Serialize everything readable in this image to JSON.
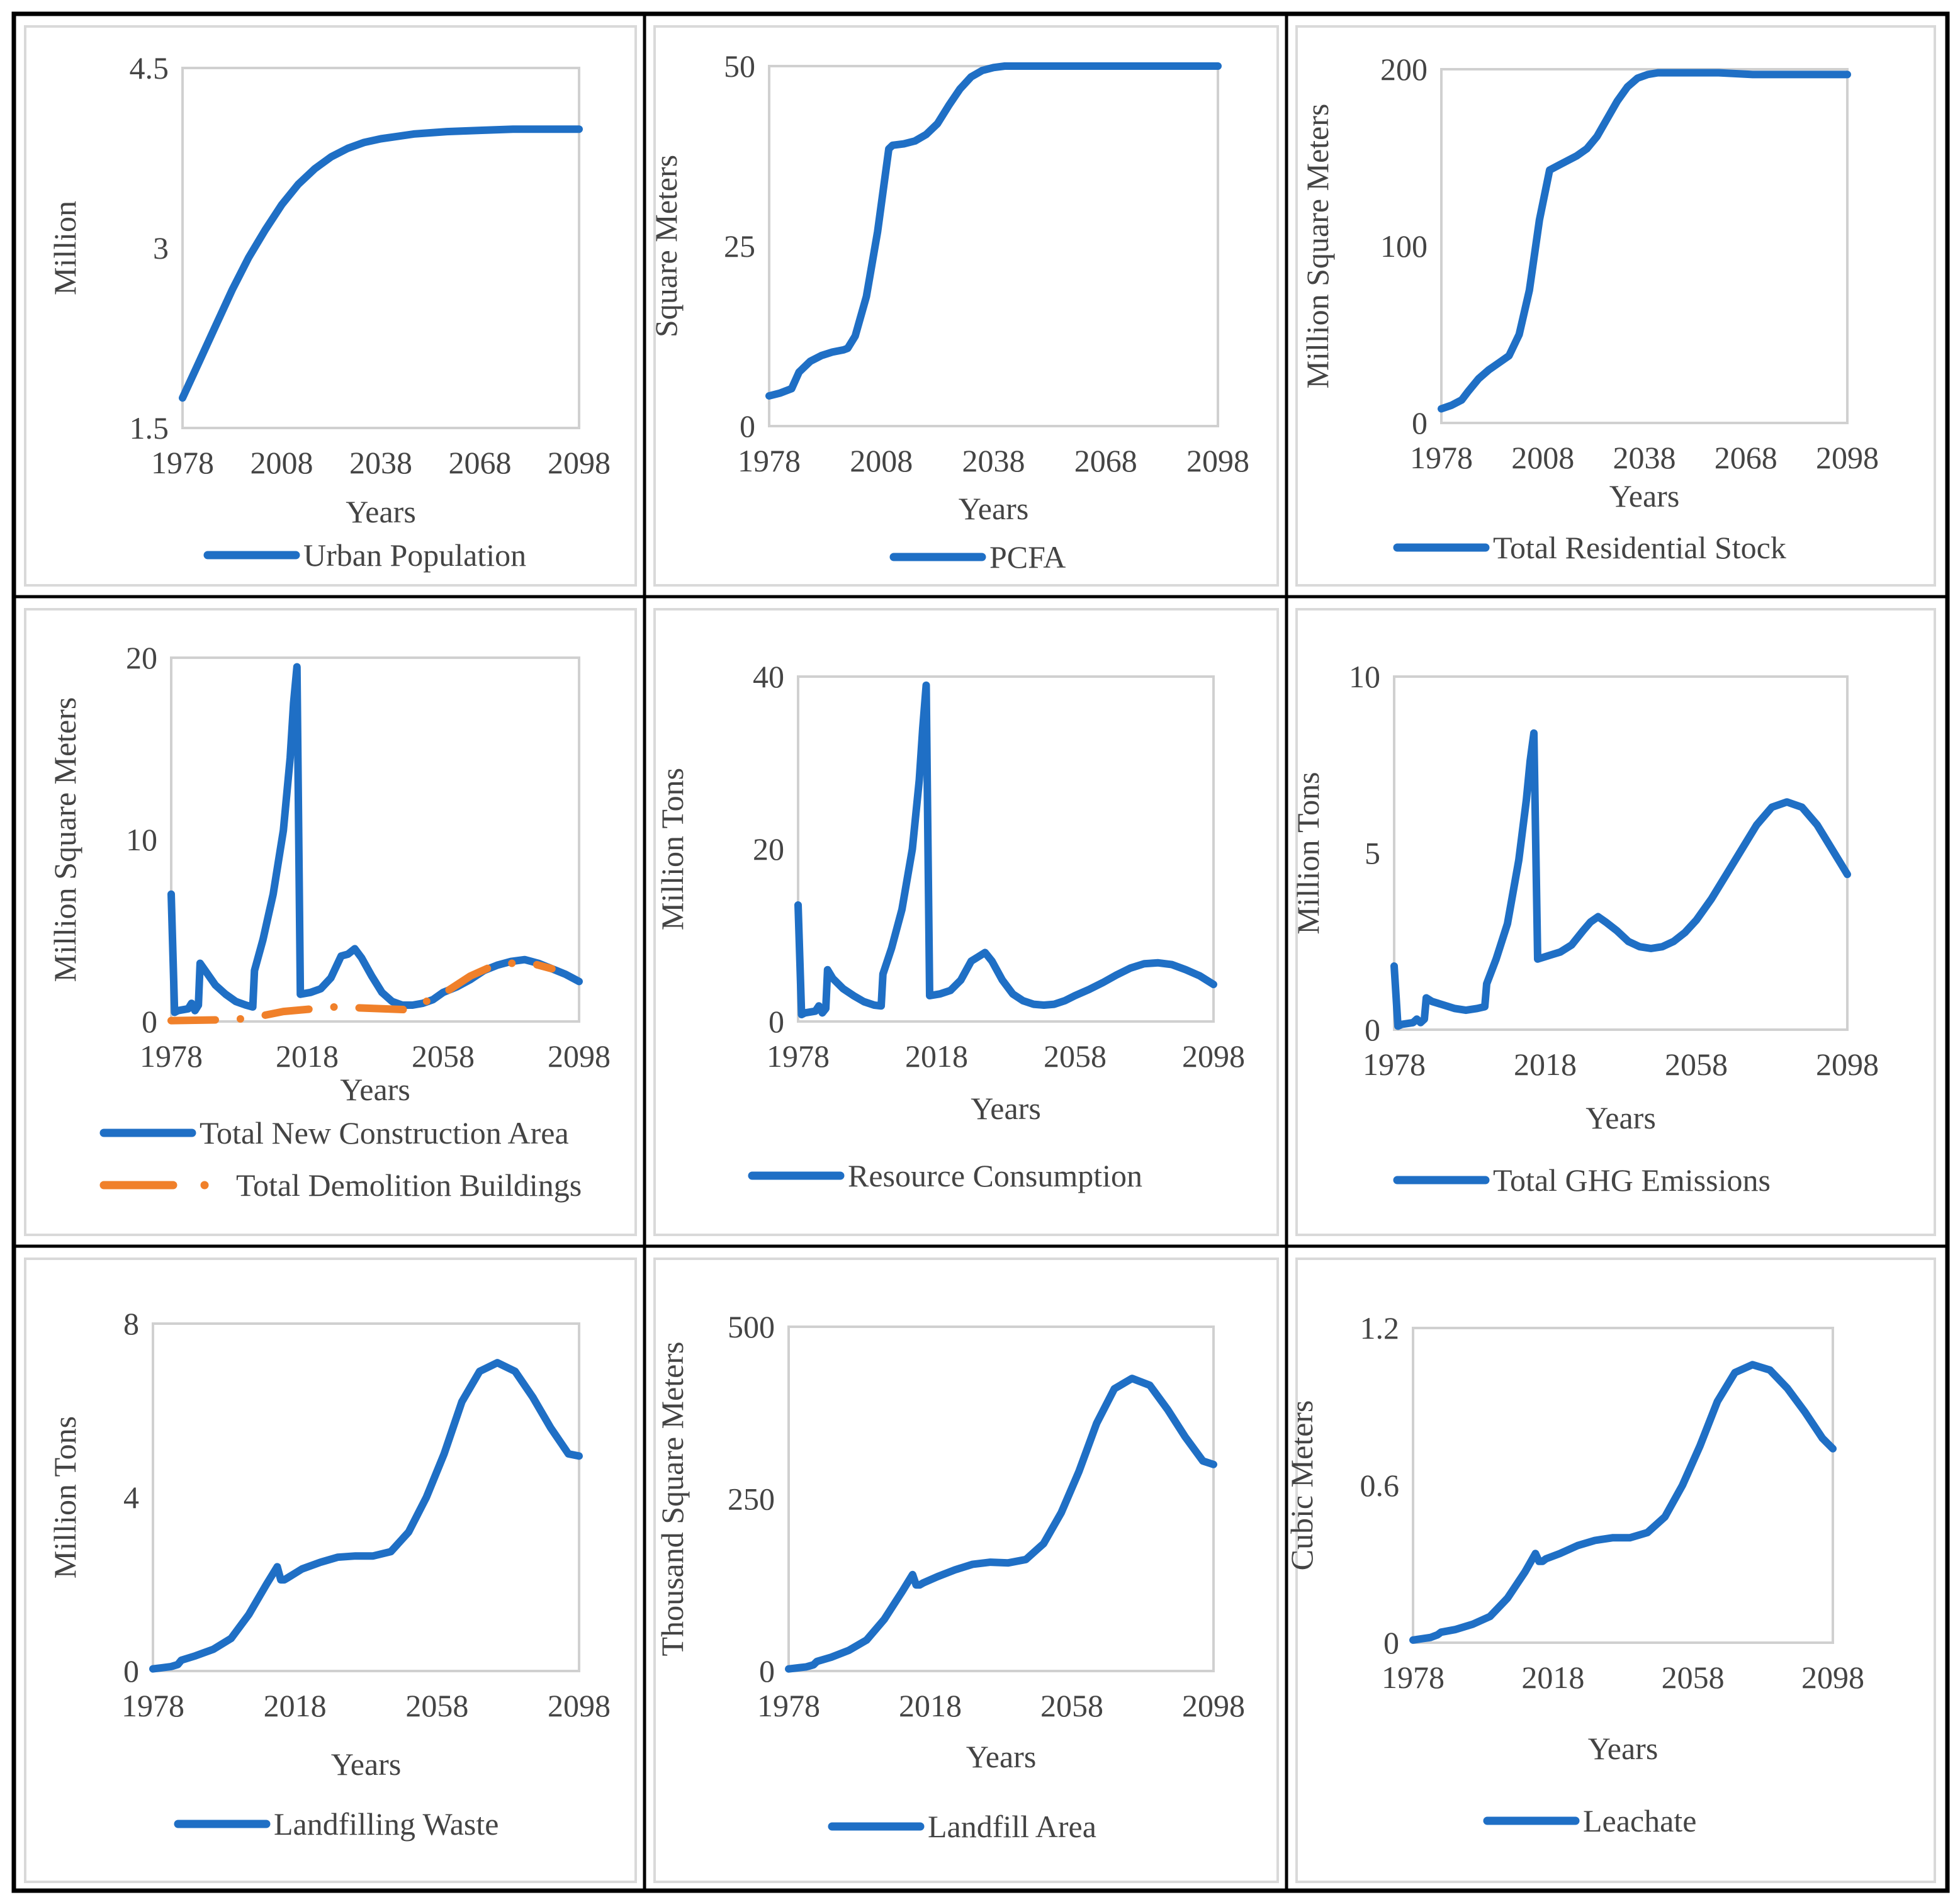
{
  "chart_data": [
    {
      "type": "line",
      "xlabel": "Years",
      "ylabel": "Million",
      "xlim": [
        1978,
        2098
      ],
      "ylim": [
        1.5,
        4.5
      ],
      "xticks": [
        "1978",
        "2008",
        "2038",
        "2068",
        "2098"
      ],
      "yticks": [
        "1.5",
        "3",
        "4.5"
      ],
      "series": [
        {
          "name": "Urban Population",
          "color": "#1f6fc5",
          "dash": false,
          "x": [
            1978,
            1983,
            1988,
            1993,
            1998,
            2003,
            2008,
            2013,
            2018,
            2023,
            2028,
            2033,
            2038,
            2048,
            2058,
            2068,
            2078,
            2088,
            2098
          ],
          "y": [
            1.75,
            2.05,
            2.35,
            2.65,
            2.92,
            3.15,
            3.36,
            3.53,
            3.66,
            3.76,
            3.83,
            3.88,
            3.91,
            3.95,
            3.97,
            3.98,
            3.99,
            3.99,
            3.99
          ]
        }
      ]
    },
    {
      "type": "line",
      "xlabel": "Years",
      "ylabel": "Square Meters",
      "xlim": [
        1978,
        2098
      ],
      "ylim": [
        0,
        50
      ],
      "xticks": [
        "1978",
        "2008",
        "2038",
        "2068",
        "2098"
      ],
      "yticks": [
        "0",
        "25",
        "50"
      ],
      "series": [
        {
          "name": "PCFA",
          "color": "#1f6fc5",
          "dash": false,
          "x": [
            1978,
            1981,
            1984,
            1986,
            1989,
            1992,
            1995,
            1998,
            1999,
            2001,
            2004,
            2007,
            2010,
            2011,
            2014,
            2017,
            2020,
            2023,
            2026,
            2029,
            2032,
            2035,
            2038,
            2041,
            2044,
            2050,
            2060,
            2070,
            2080,
            2090,
            2098
          ],
          "y": [
            4.2,
            4.6,
            5.2,
            7.5,
            9.0,
            9.8,
            10.3,
            10.6,
            10.8,
            12.5,
            18.0,
            27.0,
            38.5,
            39.0,
            39.2,
            39.6,
            40.5,
            42.0,
            44.5,
            46.8,
            48.5,
            49.4,
            49.8,
            50.0,
            50.0,
            50.0,
            50.0,
            50.0,
            50.0,
            50.0,
            50.0
          ]
        }
      ]
    },
    {
      "type": "line",
      "xlabel": "Years",
      "ylabel": "Million Square Meters",
      "xlim": [
        1978,
        2098
      ],
      "ylim": [
        0,
        200
      ],
      "xticks": [
        "1978",
        "2008",
        "2038",
        "2068",
        "2098"
      ],
      "yticks": [
        "0",
        "100",
        "200"
      ],
      "series": [
        {
          "name": "Total Residential Stock",
          "color": "#1f6fc5",
          "dash": false,
          "x": [
            1978,
            1981,
            1984,
            1986,
            1989,
            1992,
            1995,
            1998,
            2001,
            2004,
            2007,
            2010,
            2013,
            2015,
            2018,
            2021,
            2024,
            2027,
            2030,
            2033,
            2036,
            2039,
            2042,
            2045,
            2050,
            2060,
            2070,
            2080,
            2090,
            2098
          ],
          "y": [
            8,
            10,
            13,
            18,
            25,
            30,
            34,
            38,
            50,
            75,
            115,
            143,
            146,
            148,
            151,
            155,
            162,
            172,
            182,
            190,
            195,
            197,
            198,
            198,
            198,
            198,
            197,
            197,
            197,
            197
          ]
        }
      ]
    },
    {
      "type": "line",
      "xlabel": "Years",
      "ylabel": "Million Square Meters",
      "xlim": [
        1978,
        2098
      ],
      "ylim": [
        0,
        20
      ],
      "xticks": [
        "1978",
        "2018",
        "2058",
        "2098"
      ],
      "yticks": [
        "0",
        "10",
        "20"
      ],
      "series": [
        {
          "name": "Total New Construction Area",
          "color": "#1f6fc5",
          "dash": false,
          "x": [
            1978,
            1979,
            1980,
            1983,
            1984,
            1985,
            1986,
            1986.5,
            1988,
            1991,
            1994,
            1997,
            2000,
            2002,
            2002.5,
            2005,
            2008,
            2011,
            2013,
            2014,
            2015,
            2016,
            2019,
            2022,
            2025,
            2028,
            2030,
            2032,
            2034,
            2037,
            2040,
            2043,
            2046,
            2049,
            2052,
            2055,
            2058,
            2062,
            2066,
            2070,
            2074,
            2078,
            2082,
            2086,
            2090,
            2094,
            2098
          ],
          "y": [
            7.0,
            0.5,
            0.6,
            0.7,
            1.0,
            0.6,
            0.9,
            3.2,
            2.8,
            2.0,
            1.5,
            1.1,
            0.9,
            0.8,
            2.8,
            4.5,
            7.0,
            10.5,
            14.5,
            17.5,
            19.5,
            1.5,
            1.6,
            1.8,
            2.4,
            3.6,
            3.7,
            4.0,
            3.5,
            2.5,
            1.6,
            1.1,
            0.9,
            0.9,
            1.0,
            1.2,
            1.6,
            1.9,
            2.3,
            2.8,
            3.1,
            3.3,
            3.4,
            3.2,
            2.9,
            2.6,
            2.2
          ]
        },
        {
          "name": "Total Demolition Buildings",
          "color": "#f0802a",
          "dash": true,
          "x": [
            1978,
            1985,
            1992,
            1999,
            2003,
            2011,
            2026,
            2033,
            2040,
            2047,
            2057,
            2066,
            2072,
            2078,
            2084,
            2090
          ],
          "y": [
            0.05,
            0.07,
            0.09,
            0.15,
            0.25,
            0.55,
            0.8,
            0.75,
            0.7,
            0.65,
            1.4,
            2.5,
            3.0,
            3.2,
            3.2,
            2.9
          ]
        }
      ]
    },
    {
      "type": "line",
      "xlabel": "Years",
      "ylabel": "Million Tons",
      "xlim": [
        1978,
        2098
      ],
      "ylim": [
        0,
        40
      ],
      "xticks": [
        "1978",
        "2018",
        "2058",
        "2098"
      ],
      "yticks": [
        "0",
        "20",
        "40"
      ],
      "series": [
        {
          "name": "Resource Consumption",
          "color": "#1f6fc5",
          "dash": false,
          "x": [
            1978,
            1979,
            1980,
            1983,
            1984,
            1985,
            1986,
            1986.5,
            1988,
            1991,
            1994,
            1997,
            2000,
            2002,
            2002.5,
            2005,
            2008,
            2011,
            2013,
            2014,
            2015,
            2016,
            2019,
            2022,
            2025,
            2028,
            2030,
            2032,
            2034,
            2037,
            2040,
            2043,
            2046,
            2049,
            2052,
            2055,
            2058,
            2062,
            2066,
            2070,
            2074,
            2078,
            2082,
            2086,
            2090,
            2094,
            2098
          ],
          "y": [
            13.5,
            0.8,
            1.0,
            1.2,
            1.8,
            1.0,
            1.5,
            6.0,
            5.0,
            3.8,
            3.0,
            2.3,
            1.9,
            1.8,
            5.5,
            8.5,
            13.0,
            20.0,
            28.0,
            34.0,
            39.0,
            3.0,
            3.2,
            3.6,
            4.8,
            7.0,
            7.5,
            8.0,
            7.0,
            4.8,
            3.2,
            2.4,
            2.0,
            1.9,
            2.0,
            2.4,
            3.0,
            3.7,
            4.5,
            5.4,
            6.2,
            6.7,
            6.8,
            6.6,
            6.0,
            5.3,
            4.3
          ]
        }
      ]
    },
    {
      "type": "line",
      "xlabel": "Years",
      "ylabel": "Million Tons",
      "xlim": [
        1978,
        2098
      ],
      "ylim": [
        0,
        10
      ],
      "xticks": [
        "1978",
        "2018",
        "2058",
        "2098"
      ],
      "yticks": [
        "0",
        "5",
        "10"
      ],
      "series": [
        {
          "name": "Total GHG Emissions",
          "color": "#1f6fc5",
          "dash": false,
          "x": [
            1978,
            1979,
            1980,
            1983,
            1984,
            1985,
            1986,
            1986.5,
            1988,
            1991,
            1994,
            1997,
            2000,
            2002,
            2002.5,
            2005,
            2008,
            2011,
            2013,
            2014,
            2015,
            2016,
            2019,
            2022,
            2025,
            2028,
            2030,
            2032,
            2034,
            2037,
            2040,
            2043,
            2046,
            2049,
            2052,
            2055,
            2058,
            2062,
            2066,
            2070,
            2074,
            2078,
            2082,
            2086,
            2090,
            2094,
            2098
          ],
          "y": [
            1.8,
            0.1,
            0.15,
            0.2,
            0.3,
            0.2,
            0.3,
            0.9,
            0.8,
            0.7,
            0.6,
            0.55,
            0.6,
            0.65,
            1.3,
            2.0,
            3.0,
            4.8,
            6.5,
            7.6,
            8.4,
            2.0,
            2.1,
            2.2,
            2.4,
            2.8,
            3.05,
            3.2,
            3.05,
            2.8,
            2.5,
            2.35,
            2.3,
            2.35,
            2.5,
            2.75,
            3.1,
            3.7,
            4.4,
            5.1,
            5.8,
            6.3,
            6.45,
            6.3,
            5.8,
            5.1,
            4.4
          ]
        }
      ]
    },
    {
      "type": "line",
      "xlabel": "Years",
      "ylabel": "Million Tons",
      "xlim": [
        1978,
        2098
      ],
      "ylim": [
        0,
        8
      ],
      "xticks": [
        "1978",
        "2018",
        "2058",
        "2098"
      ],
      "yticks": [
        "0",
        "4",
        "8"
      ],
      "series": [
        {
          "name": "Landfilling Waste",
          "color": "#1f6fc5",
          "dash": false,
          "x": [
            1978,
            1983,
            1985,
            1986,
            1990,
            1995,
            2000,
            2005,
            2010,
            2013,
            2014,
            2015,
            2016,
            2020,
            2025,
            2030,
            2035,
            2040,
            2045,
            2050,
            2055,
            2060,
            2065,
            2070,
            2075,
            2080,
            2085,
            2090,
            2095,
            2098
          ],
          "y": [
            0.05,
            0.1,
            0.15,
            0.25,
            0.35,
            0.5,
            0.75,
            1.3,
            2.0,
            2.4,
            2.1,
            2.1,
            2.15,
            2.35,
            2.5,
            2.62,
            2.65,
            2.65,
            2.75,
            3.2,
            4.0,
            5.0,
            6.2,
            6.9,
            7.1,
            6.9,
            6.3,
            5.6,
            5.0,
            4.95
          ]
        }
      ]
    },
    {
      "type": "line",
      "xlabel": "Years",
      "ylabel": "Thousand Square Meters",
      "xlim": [
        1978,
        2098
      ],
      "ylim": [
        0,
        500
      ],
      "xticks": [
        "1978",
        "2018",
        "2058",
        "2098"
      ],
      "yticks": [
        "0",
        "250",
        "500"
      ],
      "series": [
        {
          "name": "Landfill Area",
          "color": "#1f6fc5",
          "dash": false,
          "x": [
            1978,
            1983,
            1985,
            1986,
            1990,
            1995,
            2000,
            2005,
            2010,
            2013,
            2014,
            2015,
            2016,
            2020,
            2025,
            2030,
            2035,
            2040,
            2045,
            2050,
            2055,
            2060,
            2065,
            2070,
            2075,
            2080,
            2085,
            2090,
            2095,
            2098
          ],
          "y": [
            3,
            6,
            9,
            14,
            20,
            30,
            45,
            75,
            115,
            140,
            125,
            125,
            128,
            137,
            147,
            155,
            158,
            157,
            162,
            185,
            230,
            290,
            360,
            410,
            425,
            415,
            380,
            340,
            305,
            300
          ]
        }
      ]
    },
    {
      "type": "line",
      "xlabel": "Years",
      "ylabel": "Cubic Meters",
      "xlim": [
        1978,
        2098
      ],
      "ylim": [
        0,
        1.2
      ],
      "xticks": [
        "1978",
        "2018",
        "2058",
        "2098"
      ],
      "yticks": [
        "0",
        "0.6",
        "1.2"
      ],
      "series": [
        {
          "name": "Leachate",
          "color": "#1f6fc5",
          "dash": false,
          "x": [
            1978,
            1983,
            1985,
            1986,
            1990,
            1995,
            2000,
            2005,
            2010,
            2013,
            2014,
            2015,
            2016,
            2020,
            2025,
            2030,
            2035,
            2040,
            2045,
            2050,
            2055,
            2060,
            2065,
            2070,
            2075,
            2080,
            2085,
            2090,
            2095,
            2098
          ],
          "y": [
            0.01,
            0.02,
            0.03,
            0.04,
            0.05,
            0.07,
            0.1,
            0.17,
            0.27,
            0.34,
            0.31,
            0.31,
            0.32,
            0.34,
            0.37,
            0.39,
            0.4,
            0.4,
            0.42,
            0.48,
            0.6,
            0.75,
            0.92,
            1.03,
            1.06,
            1.04,
            0.97,
            0.88,
            0.78,
            0.74
          ]
        }
      ]
    }
  ]
}
